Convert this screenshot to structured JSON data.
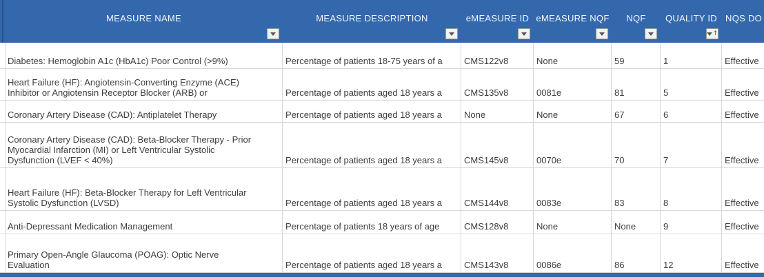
{
  "table": {
    "columns": [
      {
        "id": "measure-name",
        "label": "MEASURE NAME",
        "filter": true,
        "sorted": false
      },
      {
        "id": "measure-description",
        "label": "MEASURE DESCRIPTION",
        "filter": true,
        "sorted": false
      },
      {
        "id": "emeasure-id",
        "label": "eMEASURE ID",
        "filter": true,
        "sorted": false
      },
      {
        "id": "emeasure-nqf",
        "label": "eMEASURE NQF",
        "filter": true,
        "sorted": false
      },
      {
        "id": "nqf",
        "label": "NQF",
        "filter": true,
        "sorted": false
      },
      {
        "id": "quality-id",
        "label": "QUALITY ID",
        "filter": true,
        "sorted": "ascending"
      },
      {
        "id": "nqs-domain",
        "label": "NQS DO",
        "filter": false,
        "sorted": false,
        "clipped": true
      }
    ],
    "rows": [
      {
        "name": "Diabetes: Hemoglobin A1c (HbA1c) Poor Control (>9%)",
        "description": "Percentage of patients 18-75 years of a",
        "emeasure_id": "CMS122v8",
        "emeasure_nqf": "None",
        "nqf": "59",
        "quality_id": "1",
        "nqs_domain": "Effective"
      },
      {
        "name": "Heart Failure (HF): Angiotensin-Converting Enzyme (ACE)\nInhibitor or Angiotensin Receptor Blocker (ARB) or",
        "description": "Percentage of patients aged 18 years a",
        "emeasure_id": "CMS135v8",
        "emeasure_nqf": "0081e",
        "nqf": "81",
        "quality_id": "5",
        "nqs_domain": "Effective"
      },
      {
        "name": "Coronary Artery Disease (CAD): Antiplatelet Therapy",
        "description": "Percentage of patients aged 18 years a",
        "emeasure_id": "None",
        "emeasure_nqf": "None",
        "nqf": "67",
        "quality_id": "6",
        "nqs_domain": "Effective"
      },
      {
        "name": "Coronary Artery Disease (CAD): Beta-Blocker Therapy - Prior\nMyocardial Infarction (MI) or Left Ventricular Systolic\nDysfunction (LVEF < 40%)",
        "description": "Percentage of patients aged 18 years a",
        "emeasure_id": "CMS145v8",
        "emeasure_nqf": "0070e",
        "nqf": "70",
        "quality_id": "7",
        "nqs_domain": "Effective"
      },
      {
        "name": "Heart Failure (HF): Beta-Blocker Therapy for Left Ventricular\nSystolic Dysfunction (LVSD)",
        "description": "Percentage of patients aged 18 years a",
        "emeasure_id": "CMS144v8",
        "emeasure_nqf": "0083e",
        "nqf": "83",
        "quality_id": "8",
        "nqs_domain": "Effective"
      },
      {
        "name": "Anti-Depressant Medication Management",
        "description": "Percentage of patients 18 years of age",
        "emeasure_id": "CMS128v8",
        "emeasure_nqf": "None",
        "nqf": "None",
        "quality_id": "9",
        "nqs_domain": "Effective"
      },
      {
        "name": "Primary Open-Angle Glaucoma (POAG): Optic Nerve\nEvaluation",
        "description": "Percentage of patients aged 18 years a",
        "emeasure_id": "CMS143v8",
        "emeasure_nqf": "0086e",
        "nqf": "86",
        "quality_id": "12",
        "nqs_domain": "Effective"
      }
    ]
  },
  "colors": {
    "header_bg": "#3468ac",
    "header_text": "#ffffff",
    "gridline": "#d8d8d8",
    "body_text": "#3d3d3d",
    "filter_button_bg": "#f2f2f2"
  }
}
